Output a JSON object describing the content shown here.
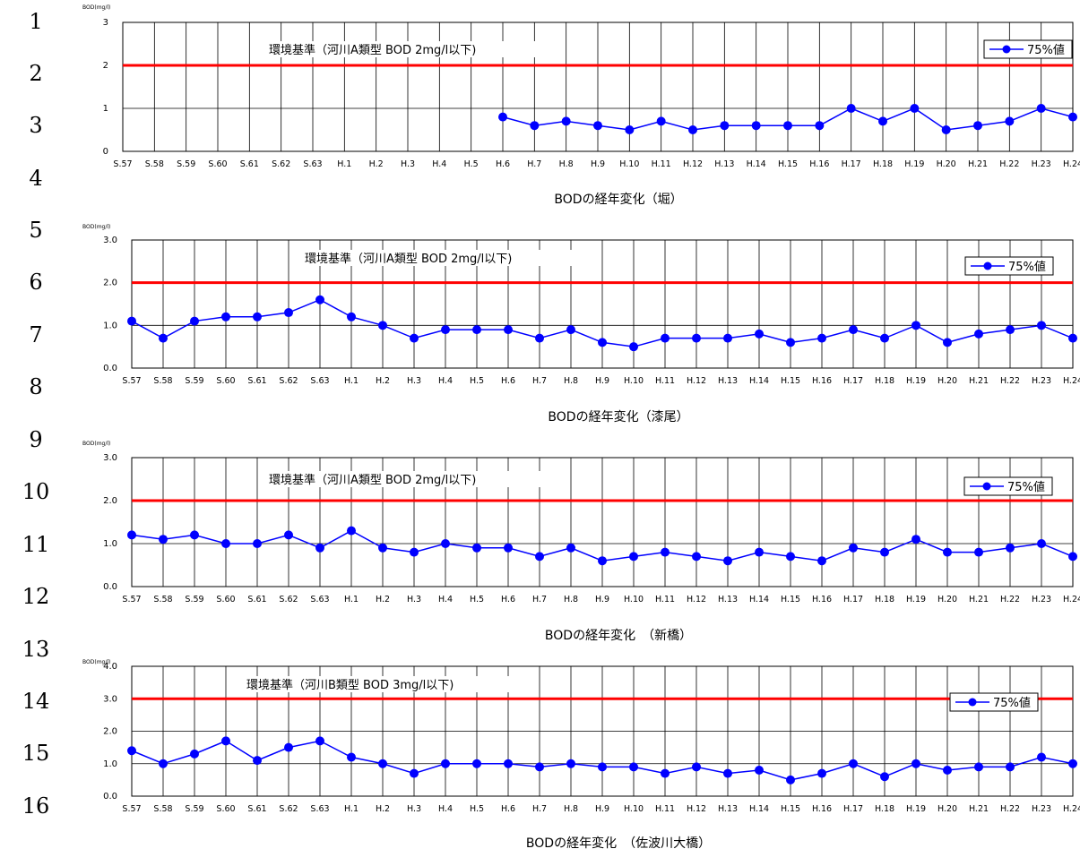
{
  "line_numbers": [
    "1",
    "2",
    "3",
    "4",
    "5",
    "6",
    "7",
    "8",
    "9",
    "10",
    "11",
    "12",
    "13",
    "14",
    "15",
    "16"
  ],
  "chart_data": [
    {
      "type": "line",
      "title": "BODの経年変化（堀）",
      "ylabel": "BOD(mg/l)",
      "ylim": [
        0,
        3
      ],
      "yticks": [
        "0",
        "1",
        "2",
        "3"
      ],
      "categories": [
        "S.57",
        "S.58",
        "S.59",
        "S.60",
        "S.61",
        "S.62",
        "S.63",
        "H.1",
        "H.2",
        "H.3",
        "H.4",
        "H.5",
        "H.6",
        "H.7",
        "H.8",
        "H.9",
        "H.10",
        "H.11",
        "H.12",
        "H.13",
        "H.14",
        "H.15",
        "H.16",
        "H.17",
        "H.18",
        "H.19",
        "H.20",
        "H.21",
        "H.22",
        "H.23",
        "H.24"
      ],
      "series": [
        {
          "name": "75%値",
          "color": "#0000ff",
          "values": [
            null,
            null,
            null,
            null,
            null,
            null,
            null,
            null,
            null,
            null,
            null,
            null,
            0.8,
            0.6,
            0.7,
            0.6,
            0.5,
            0.7,
            0.5,
            0.6,
            0.6,
            0.6,
            0.6,
            1.0,
            0.7,
            1.0,
            0.5,
            0.6,
            0.7,
            1.0,
            0.8
          ]
        }
      ],
      "standard": {
        "value": 2,
        "label": "環境基準（河川A類型 BOD 2mg/l以下)",
        "color": "#ff0000"
      },
      "grid": true,
      "legend": "top-right"
    },
    {
      "type": "line",
      "title": "BODの経年変化（漆尾）",
      "ylabel": "BOD(mg/l)",
      "ylim": [
        0,
        3
      ],
      "yticks": [
        "0.0",
        "1.0",
        "2.0",
        "3.0"
      ],
      "categories": [
        "S.57",
        "S.58",
        "S.59",
        "S.60",
        "S.61",
        "S.62",
        "S.63",
        "H.1",
        "H.2",
        "H.3",
        "H.4",
        "H.5",
        "H.6",
        "H.7",
        "H.8",
        "H.9",
        "H.10",
        "H.11",
        "H.12",
        "H.13",
        "H.14",
        "H.15",
        "H.16",
        "H.17",
        "H.18",
        "H.19",
        "H.20",
        "H.21",
        "H.22",
        "H.23",
        "H.24"
      ],
      "series": [
        {
          "name": "75%値",
          "color": "#0000ff",
          "values": [
            1.1,
            0.7,
            1.1,
            1.2,
            1.2,
            1.3,
            1.6,
            1.2,
            1.0,
            0.7,
            0.9,
            0.9,
            0.9,
            0.7,
            0.9,
            0.6,
            0.5,
            0.7,
            0.7,
            0.7,
            0.8,
            0.6,
            0.7,
            0.9,
            0.7,
            1.0,
            0.6,
            0.8,
            0.9,
            1.0,
            0.7
          ]
        }
      ],
      "standard": {
        "value": 2,
        "label": "環境基準（河川A類型 BOD 2mg/l以下)",
        "color": "#ff0000"
      },
      "grid": true,
      "legend": "top-right"
    },
    {
      "type": "line",
      "title": "BODの経年変化　（新橋）",
      "ylabel": "BOD(mg/l)",
      "ylim": [
        0,
        3
      ],
      "yticks": [
        "0.0",
        "1.0",
        "2.0",
        "3.0"
      ],
      "categories": [
        "S.57",
        "S.58",
        "S.59",
        "S.60",
        "S.61",
        "S.62",
        "S.63",
        "H.1",
        "H.2",
        "H.3",
        "H.4",
        "H.5",
        "H.6",
        "H.7",
        "H.8",
        "H.9",
        "H.10",
        "H.11",
        "H.12",
        "H.13",
        "H.14",
        "H.15",
        "H.16",
        "H.17",
        "H.18",
        "H.19",
        "H.20",
        "H.21",
        "H.22",
        "H.23",
        "H.24"
      ],
      "series": [
        {
          "name": "75%値",
          "color": "#0000ff",
          "values": [
            1.2,
            1.1,
            1.2,
            1.0,
            1.0,
            1.2,
            0.9,
            1.3,
            0.9,
            0.8,
            1.0,
            0.9,
            0.9,
            0.7,
            0.9,
            0.6,
            0.7,
            0.8,
            0.7,
            0.6,
            0.8,
            0.7,
            0.6,
            0.9,
            0.8,
            1.1,
            0.8,
            0.8,
            0.9,
            1.0,
            0.7
          ]
        }
      ],
      "standard": {
        "value": 2,
        "label": "環境基準（河川A類型 BOD 2mg/l以下)",
        "color": "#ff0000"
      },
      "grid": true,
      "legend": "top-right"
    },
    {
      "type": "line",
      "title": "BODの経年変化　（佐波川大橋）",
      "ylabel": "BOD(mg/l)",
      "ylim": [
        0,
        4
      ],
      "yticks": [
        "0.0",
        "1.0",
        "2.0",
        "3.0",
        "4.0"
      ],
      "categories": [
        "S.57",
        "S.58",
        "S.59",
        "S.60",
        "S.61",
        "S.62",
        "S.63",
        "H.1",
        "H.2",
        "H.3",
        "H.4",
        "H.5",
        "H.6",
        "H.7",
        "H.8",
        "H.9",
        "H.10",
        "H.11",
        "H.12",
        "H.13",
        "H.14",
        "H.15",
        "H.16",
        "H.17",
        "H.18",
        "H.19",
        "H.20",
        "H.21",
        "H.22",
        "H.23",
        "H.24"
      ],
      "series": [
        {
          "name": "75%値",
          "color": "#0000ff",
          "values": [
            1.4,
            1.0,
            1.3,
            1.7,
            1.1,
            1.5,
            1.7,
            1.2,
            1.0,
            0.7,
            1.0,
            1.0,
            1.0,
            0.9,
            1.0,
            0.9,
            0.9,
            0.7,
            0.9,
            0.7,
            0.8,
            0.5,
            0.7,
            1.0,
            0.6,
            1.0,
            0.8,
            0.9,
            0.9,
            1.2,
            1.0
          ]
        }
      ],
      "standard": {
        "value": 3,
        "label": "環境基準（河川B類型 BOD 3mg/l以下)",
        "color": "#ff0000"
      },
      "grid": true,
      "legend": "top-right"
    }
  ]
}
